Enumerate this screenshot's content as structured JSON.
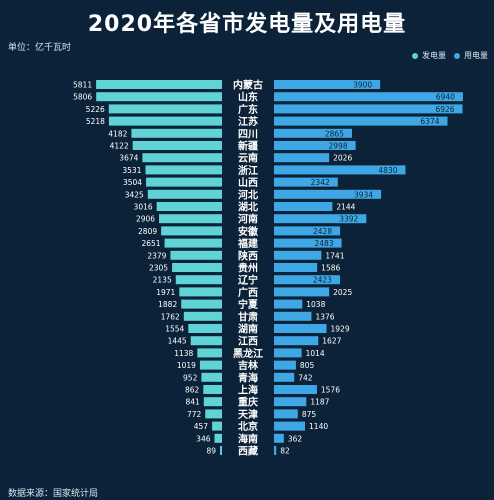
{
  "title": "2020年各省市发电量及用电量",
  "unit": "单位：亿千瓦时",
  "source": "数据来源：国家统计局",
  "colors": {
    "generation": "#5fd3d6",
    "consumption": "#3fa7e6",
    "background": "#0b2238"
  },
  "chart_data": {
    "type": "bar",
    "orientation": "horizontal-butterfly",
    "categories": [
      "内蒙古",
      "山东",
      "广东",
      "江苏",
      "四川",
      "新疆",
      "云南",
      "浙江",
      "山西",
      "河北",
      "湖北",
      "河南",
      "安徽",
      "福建",
      "陕西",
      "贵州",
      "辽宁",
      "广西",
      "宁夏",
      "甘肃",
      "湖南",
      "江西",
      "黑龙江",
      "吉林",
      "青海",
      "上海",
      "重庆",
      "天津",
      "北京",
      "海南",
      "西藏"
    ],
    "series": [
      {
        "name": "发电量",
        "side": "left",
        "values": [
          5811,
          5806,
          5226,
          5218,
          4182,
          4122,
          3674,
          3531,
          3504,
          3425,
          3016,
          2906,
          2809,
          2651,
          2379,
          2305,
          2135,
          1971,
          1882,
          1762,
          1554,
          1445,
          1138,
          1019,
          952,
          862,
          841,
          772,
          457,
          346,
          89
        ]
      },
      {
        "name": "用电量",
        "side": "right",
        "values": [
          3900,
          6940,
          6926,
          6374,
          2865,
          2998,
          2026,
          4830,
          2342,
          3934,
          2144,
          3392,
          2428,
          2483,
          1741,
          1586,
          2423,
          2025,
          1038,
          1376,
          1929,
          1627,
          1014,
          805,
          742,
          1576,
          1187,
          875,
          1140,
          362,
          82
        ]
      }
    ],
    "legend_position": "top-right",
    "grid": false
  }
}
